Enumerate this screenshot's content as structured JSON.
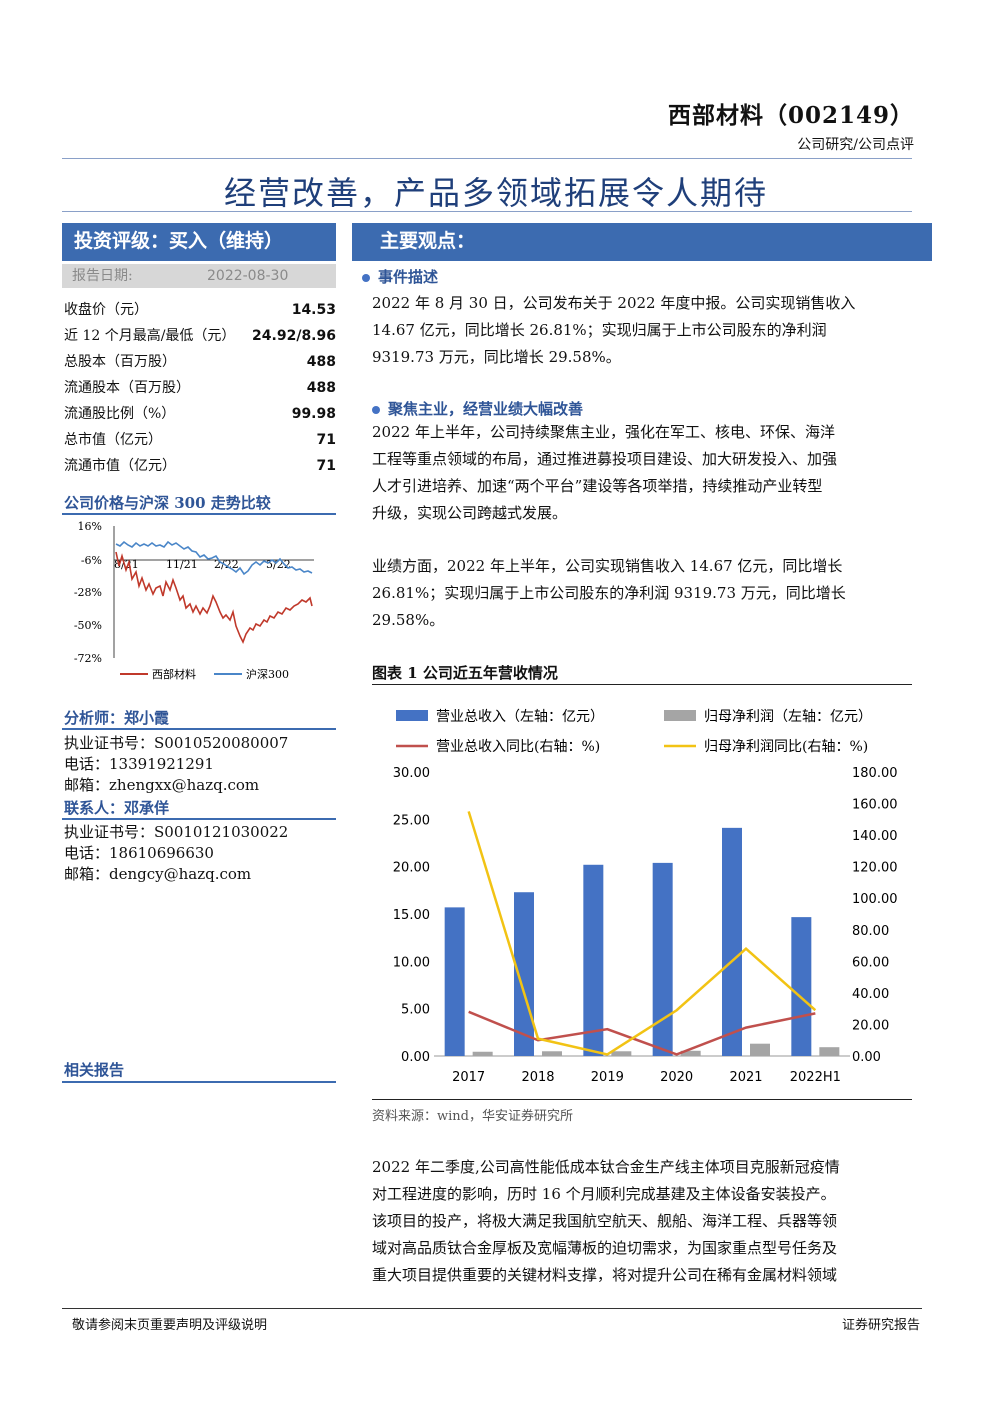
{
  "header": {
    "company": "西部材料（002149）",
    "report_type": "公司研究/公司点评"
  },
  "title": "经营改善，产品多领域拓展令人期待",
  "rating": {
    "label": "投资评级：买入（维持）",
    "date_label": "报告日期:",
    "date": "2022-08-30"
  },
  "financials": [
    {
      "label": "收盘价（元）",
      "value": "14.53"
    },
    {
      "label": "近 12 个月最高/最低（元）",
      "value": "24.92/8.96"
    },
    {
      "label": "总股本（百万股）",
      "value": "488"
    },
    {
      "label": "流通股本（百万股）",
      "value": "488"
    },
    {
      "label": "流通股比例（%）",
      "value": "99.98"
    },
    {
      "label": "总市值（亿元）",
      "value": "71"
    },
    {
      "label": "流通市值（亿元）",
      "value": "71"
    }
  ],
  "price_chart": {
    "title": "公司价格与沪深 300 走势比较",
    "y_ticks": [
      "16%",
      "-6%",
      "-28%",
      "-50%",
      "-72%"
    ],
    "x_ticks": [
      "8/21",
      "11/21",
      "2/22",
      "5/22"
    ],
    "legend": [
      "西部材料",
      "沪深300"
    ],
    "colors": {
      "company": "#c0392b",
      "index": "#4a86c8"
    }
  },
  "analyst": {
    "heading": "分析师：郑小霞",
    "cert": "执业证书号：S0010520080007",
    "phone": "电话：13391921291",
    "email": "邮箱：zhengxx@hazq.com"
  },
  "contact": {
    "heading": "联系人：邓承佯",
    "cert": "执业证书号：S0010121030022",
    "phone": "电话：18610696630",
    "email": "邮箱：dengcy@hazq.com"
  },
  "related_reports": "相关报告",
  "main": {
    "heading": "主要观点：",
    "s1_title": "事件描述",
    "s1_lines": [
      "2022 年 8 月 30 日，公司发布关于 2022 年度中报。公司实现销售收入",
      "14.67 亿元，同比增长 26.81%；实现归属于上市公司股东的净利润",
      "9319.73 万元，同比增长 29.58%。"
    ],
    "s2_title": "聚焦主业，经营业绩大幅改善",
    "s2_lines": [
      "2022 年上半年，公司持续聚焦主业，强化在军工、核电、环保、海洋",
      "工程等重点领域的布局，通过推进募投项目建设、加大研发投入、加强",
      "人才引进培养、加速“两个平台”建设等各项举措，持续推动产业转型",
      "升级，实现公司跨越式发展。"
    ],
    "p2_lines": [
      "业绩方面，2022 年上半年，公司实现销售收入 14.67 亿元，同比增长",
      "26.81%；实现归属于上市公司股东的净利润 9319.73 万元，同比增长",
      "29.58%。"
    ],
    "p3_lines": [
      "2022 年二季度,公司高性能低成本钛合金生产线主体项目克服新冠疫情",
      "对工程进度的影响，历时 16 个月顺利完成基建及主体设备安装投产。",
      "该项目的投产，将极大满足我国航空航天、舰船、海洋工程、兵器等领",
      "域对高品质钛合金厚板及宽幅薄板的迫切需求，为国家重点型号任务及",
      "重大项目提供重要的关键材料支撑，将对提升公司在稀有金属材料领域"
    ]
  },
  "figure": {
    "title": "图表 1 公司近五年营收情况",
    "source": "资料来源：wind，华安证券研究所"
  },
  "chart_data": {
    "type": "bar",
    "categories": [
      "2017",
      "2018",
      "2019",
      "2020",
      "2021",
      "2022H1"
    ],
    "series": [
      {
        "name": "营业总收入（左轴：亿元）",
        "type": "bar",
        "axis": "left",
        "color": "#4472c4",
        "values": [
          15.7,
          17.3,
          20.2,
          20.4,
          24.1,
          14.67
        ]
      },
      {
        "name": "归母净利润（左轴：亿元）",
        "type": "bar",
        "axis": "left",
        "color": "#a5a5a5",
        "values": [
          0.45,
          0.5,
          0.5,
          0.55,
          1.3,
          0.93
        ]
      },
      {
        "name": "营业总收入同比(右轴：%)",
        "type": "line",
        "axis": "right",
        "color": "#c0504d",
        "values": [
          28,
          10,
          17,
          1,
          18,
          27
        ]
      },
      {
        "name": "归母净利润同比(右轴：%)",
        "type": "line",
        "axis": "right",
        "color": "#f2c314",
        "values": [
          155,
          11,
          1,
          29,
          68,
          29
        ]
      }
    ],
    "y_left_ticks": [
      "30.00",
      "25.00",
      "20.00",
      "15.00",
      "10.00",
      "5.00",
      "0.00"
    ],
    "y_right_ticks": [
      "180.00",
      "160.00",
      "140.00",
      "120.00",
      "100.00",
      "80.00",
      "60.00",
      "40.00",
      "20.00",
      "0.00"
    ],
    "ylim_left": [
      0,
      30
    ],
    "ylim_right": [
      0,
      180
    ],
    "legend_position": "top"
  },
  "footer": {
    "left": "敬请参阅末页重要声明及评级说明",
    "right": "证券研究报告"
  }
}
